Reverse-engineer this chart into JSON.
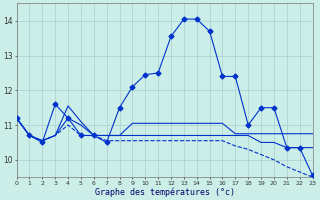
{
  "xlabel": "Graphe des températures (°c)",
  "background_color": "#cceee8",
  "grid_color": "#aacccc",
  "line_color": "#0033cc",
  "series_main": {
    "x": [
      0,
      1,
      2,
      3,
      4,
      5,
      6,
      7,
      8,
      9,
      10,
      11,
      12,
      13,
      14,
      15,
      16,
      17,
      18,
      19,
      20,
      21,
      22,
      23
    ],
    "y": [
      11.2,
      10.7,
      10.5,
      11.6,
      11.2,
      10.7,
      10.7,
      10.5,
      11.5,
      12.1,
      12.45,
      12.5,
      13.55,
      14.05,
      14.05,
      13.7,
      12.4,
      12.4,
      11.0,
      11.5,
      11.5,
      10.35,
      10.35,
      9.55
    ]
  },
  "series_s2": {
    "x": [
      0,
      1,
      2,
      3,
      4,
      5,
      6,
      7,
      8,
      9,
      10,
      11,
      12,
      13,
      14,
      15,
      16,
      17,
      18,
      19,
      20,
      21,
      22,
      23
    ],
    "y": [
      11.2,
      10.7,
      10.55,
      10.7,
      11.55,
      11.1,
      10.7,
      10.7,
      10.7,
      11.05,
      11.05,
      11.05,
      11.05,
      11.05,
      11.05,
      11.05,
      11.05,
      10.75,
      10.75,
      10.75,
      10.75,
      10.75,
      10.75,
      10.75
    ]
  },
  "series_s3": {
    "x": [
      0,
      1,
      2,
      3,
      4,
      5,
      6,
      7,
      8,
      9,
      10,
      11,
      12,
      13,
      14,
      15,
      16,
      17,
      18,
      19,
      20,
      21,
      22,
      23
    ],
    "y": [
      11.2,
      10.7,
      10.55,
      10.7,
      11.2,
      11.0,
      10.7,
      10.7,
      10.7,
      10.7,
      10.7,
      10.7,
      10.7,
      10.7,
      10.7,
      10.7,
      10.7,
      10.7,
      10.7,
      10.5,
      10.5,
      10.35,
      10.35,
      10.35
    ]
  },
  "series_s4_dashed": {
    "x": [
      0,
      1,
      2,
      3,
      4,
      5,
      6,
      7,
      8,
      9,
      10,
      11,
      12,
      13,
      14,
      15,
      16,
      17,
      18,
      19,
      20,
      21,
      22,
      23
    ],
    "y": [
      11.2,
      10.7,
      10.55,
      10.7,
      11.0,
      10.7,
      10.7,
      10.55,
      10.55,
      10.55,
      10.55,
      10.55,
      10.55,
      10.55,
      10.55,
      10.55,
      10.55,
      10.4,
      10.3,
      10.15,
      10.0,
      9.8,
      9.65,
      9.5
    ]
  },
  "ylim": [
    9.5,
    14.5
  ],
  "yticks": [
    10,
    11,
    12,
    13,
    14
  ],
  "xlim": [
    0,
    23
  ],
  "xticks": [
    0,
    1,
    2,
    3,
    4,
    5,
    6,
    7,
    8,
    9,
    10,
    11,
    12,
    13,
    14,
    15,
    16,
    17,
    18,
    19,
    20,
    21,
    22,
    23
  ]
}
